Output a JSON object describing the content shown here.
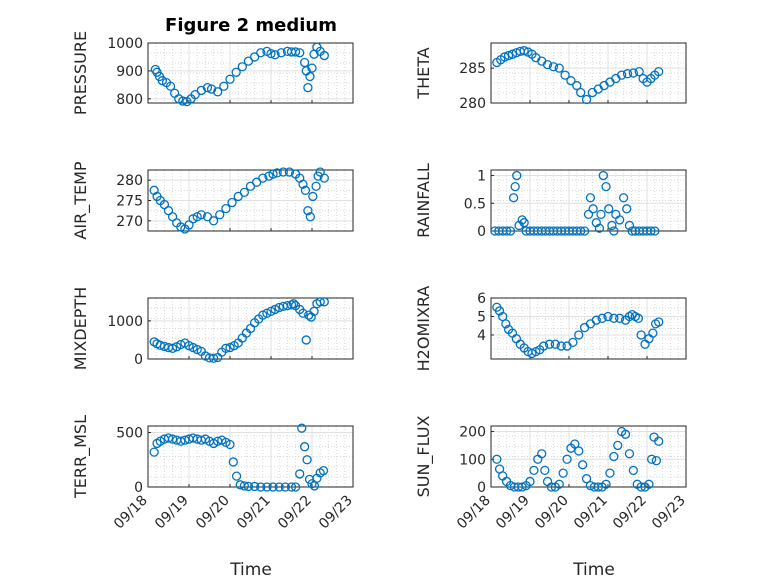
{
  "chart_data": {
    "type": "scatter",
    "title": "Figure 2 medium",
    "xlabel": "Time",
    "x_ticks": [
      "09/18",
      "09/19",
      "09/20",
      "09/21",
      "09/22",
      "09/23"
    ],
    "xlim": [
      0,
      5
    ],
    "marker": "o",
    "marker_color": "#0072BD",
    "subplots": [
      {
        "name": "PRESSURE",
        "ylabel": "PRESSURE",
        "ylim": [
          785,
          1000
        ],
        "yticks": [
          "800",
          "900",
          "1000"
        ],
        "ytick_values": [
          800,
          900,
          1000
        ],
        "x": [
          0.18,
          0.22,
          0.28,
          0.35,
          0.45,
          0.55,
          0.65,
          0.75,
          0.85,
          0.95,
          1.05,
          1.15,
          1.3,
          1.45,
          1.55,
          1.7,
          1.85,
          2.0,
          2.15,
          2.3,
          2.45,
          2.6,
          2.75,
          2.9,
          3.0,
          3.1,
          3.25,
          3.4,
          3.5,
          3.6,
          3.7,
          3.82,
          3.86,
          3.9,
          3.95,
          4.0,
          4.05,
          4.12,
          4.2,
          4.3
        ],
        "y": [
          905,
          895,
          880,
          865,
          858,
          845,
          820,
          800,
          792,
          790,
          800,
          815,
          830,
          840,
          835,
          825,
          845,
          870,
          895,
          915,
          935,
          950,
          965,
          970,
          962,
          958,
          965,
          970,
          968,
          968,
          965,
          930,
          900,
          840,
          880,
          910,
          960,
          985,
          970,
          955
        ]
      },
      {
        "name": "THETA",
        "ylabel": "THETA",
        "ylim": [
          280,
          288.6
        ],
        "yticks": [
          "280",
          "285"
        ],
        "ytick_values": [
          280,
          285
        ],
        "x": [
          0.15,
          0.25,
          0.35,
          0.45,
          0.55,
          0.65,
          0.75,
          0.85,
          0.95,
          1.05,
          1.15,
          1.3,
          1.45,
          1.6,
          1.75,
          1.9,
          2.05,
          2.2,
          2.3,
          2.45,
          2.6,
          2.75,
          2.9,
          3.05,
          3.2,
          3.35,
          3.5,
          3.65,
          3.8,
          3.9,
          4.0,
          4.1,
          4.2,
          4.3
        ],
        "y": [
          285.8,
          286.2,
          286.6,
          286.8,
          287.0,
          287.2,
          287.4,
          287.5,
          287.3,
          287.0,
          286.5,
          286.0,
          285.5,
          285.2,
          285.0,
          284.0,
          283.2,
          282.5,
          281.5,
          280.5,
          281.5,
          282.0,
          282.5,
          283.0,
          283.5,
          284.0,
          284.2,
          284.3,
          284.5,
          283.5,
          283.0,
          283.5,
          284.0,
          284.5
        ]
      },
      {
        "name": "AIR_TEMP",
        "ylabel": "AIR_TEMP",
        "ylim": [
          267.5,
          282.5
        ],
        "yticks": [
          "270",
          "275",
          "280"
        ],
        "ytick_values": [
          270,
          275,
          280
        ],
        "x": [
          0.15,
          0.22,
          0.3,
          0.4,
          0.5,
          0.6,
          0.7,
          0.8,
          0.9,
          1.0,
          1.1,
          1.2,
          1.3,
          1.45,
          1.6,
          1.75,
          1.9,
          2.05,
          2.2,
          2.35,
          2.5,
          2.65,
          2.8,
          2.95,
          3.05,
          3.15,
          3.3,
          3.45,
          3.6,
          3.7,
          3.78,
          3.84,
          3.9,
          3.96,
          4.02,
          4.1,
          4.15,
          4.2,
          4.3
        ],
        "y": [
          277.5,
          276.0,
          275.0,
          274.0,
          272.5,
          271.0,
          269.5,
          268.5,
          268.0,
          269.0,
          270.5,
          271.0,
          271.5,
          271.0,
          270.0,
          271.5,
          273.0,
          274.5,
          276.0,
          277.0,
          278.5,
          279.5,
          280.5,
          281.0,
          281.5,
          281.8,
          282.0,
          282.0,
          281.5,
          280.5,
          279.0,
          277.5,
          272.5,
          271.0,
          276.0,
          278.5,
          281.0,
          282.0,
          280.5
        ]
      },
      {
        "name": "RAINFALL",
        "ylabel": "RAINFALL",
        "ylim": [
          0,
          1.1
        ],
        "yticks": [
          "0",
          "0.5",
          "1"
        ],
        "ytick_values": [
          0,
          0.5,
          1
        ],
        "x": [
          0.1,
          0.2,
          0.3,
          0.4,
          0.5,
          0.58,
          0.62,
          0.66,
          0.72,
          0.8,
          0.85,
          0.9,
          1.0,
          1.1,
          1.2,
          1.3,
          1.4,
          1.5,
          1.6,
          1.7,
          1.8,
          1.9,
          2.0,
          2.1,
          2.2,
          2.3,
          2.4,
          2.5,
          2.55,
          2.62,
          2.7,
          2.78,
          2.82,
          2.88,
          2.95,
          3.02,
          3.1,
          3.15,
          3.2,
          3.3,
          3.4,
          3.48,
          3.55,
          3.62,
          3.7,
          3.8,
          3.9,
          4.0,
          4.1,
          4.2
        ],
        "y": [
          0,
          0,
          0,
          0,
          0,
          0.6,
          0.8,
          1.0,
          0.1,
          0.2,
          0.15,
          0,
          0,
          0,
          0,
          0,
          0,
          0,
          0,
          0,
          0,
          0,
          0,
          0,
          0,
          0,
          0,
          0.3,
          0.6,
          0.4,
          0.15,
          0.05,
          0.3,
          1.0,
          0.8,
          0.4,
          0.1,
          0,
          0.3,
          0.2,
          0.6,
          0.4,
          0.1,
          0,
          0,
          0,
          0,
          0,
          0,
          0
        ]
      },
      {
        "name": "MIXDEPTH",
        "ylabel": "MIXDEPTH",
        "ylim": [
          0,
          1600
        ],
        "yticks": [
          "0",
          "1000"
        ],
        "ytick_values": [
          0,
          1000
        ],
        "x": [
          0.15,
          0.22,
          0.3,
          0.4,
          0.5,
          0.6,
          0.7,
          0.8,
          0.9,
          1.0,
          1.1,
          1.2,
          1.3,
          1.4,
          1.5,
          1.6,
          1.7,
          1.8,
          1.9,
          2.0,
          2.1,
          2.2,
          2.3,
          2.4,
          2.5,
          2.6,
          2.7,
          2.8,
          2.9,
          3.0,
          3.1,
          3.2,
          3.3,
          3.4,
          3.5,
          3.55,
          3.6,
          3.7,
          3.78,
          3.86,
          3.92,
          3.98,
          4.05,
          4.12,
          4.2,
          4.3
        ],
        "y": [
          450,
          400,
          360,
          330,
          300,
          280,
          320,
          380,
          420,
          350,
          300,
          250,
          200,
          80,
          30,
          20,
          40,
          180,
          280,
          300,
          350,
          420,
          550,
          680,
          800,
          950,
          1050,
          1150,
          1200,
          1250,
          1300,
          1350,
          1380,
          1400,
          1420,
          1450,
          1400,
          1300,
          1200,
          500,
          1150,
          1100,
          1250,
          1450,
          1500,
          1500
        ]
      },
      {
        "name": "H2OMIXRA",
        "ylabel": "H2OMIXRA",
        "ylim": [
          2.7,
          6
        ],
        "yticks": [
          "4",
          "5",
          "6"
        ],
        "ytick_values": [
          4,
          5,
          6
        ],
        "x": [
          0.15,
          0.22,
          0.3,
          0.38,
          0.45,
          0.55,
          0.65,
          0.75,
          0.85,
          0.95,
          1.05,
          1.15,
          1.25,
          1.35,
          1.5,
          1.65,
          1.8,
          1.95,
          2.1,
          2.25,
          2.4,
          2.55,
          2.7,
          2.85,
          3.0,
          3.15,
          3.3,
          3.45,
          3.55,
          3.62,
          3.7,
          3.78,
          3.85,
          3.95,
          4.05,
          4.15,
          4.22,
          4.3
        ],
        "y": [
          5.5,
          5.3,
          5.0,
          4.6,
          4.3,
          4.1,
          3.8,
          3.5,
          3.3,
          3.1,
          3.0,
          3.1,
          3.2,
          3.4,
          3.5,
          3.5,
          3.4,
          3.4,
          3.6,
          4.0,
          4.4,
          4.6,
          4.8,
          4.9,
          5.0,
          4.9,
          4.9,
          4.8,
          5.0,
          5.1,
          5.0,
          4.9,
          4.0,
          3.5,
          3.8,
          4.1,
          4.6,
          4.7
        ]
      },
      {
        "name": "TERR_MSL",
        "ylabel": "TERR_MSL",
        "ylim": [
          0,
          560
        ],
        "yticks": [
          "0",
          "500"
        ],
        "ytick_values": [
          0,
          500
        ],
        "x": [
          0.15,
          0.22,
          0.3,
          0.4,
          0.5,
          0.6,
          0.7,
          0.8,
          0.9,
          1.0,
          1.1,
          1.2,
          1.3,
          1.4,
          1.5,
          1.6,
          1.7,
          1.8,
          1.9,
          2.0,
          2.08,
          2.16,
          2.25,
          2.35,
          2.45,
          2.6,
          2.75,
          2.9,
          3.05,
          3.2,
          3.35,
          3.5,
          3.6,
          3.7,
          3.75,
          3.82,
          3.88,
          3.94,
          4.0,
          4.06,
          4.12,
          4.2,
          4.28
        ],
        "y": [
          320,
          400,
          420,
          440,
          450,
          440,
          430,
          420,
          430,
          440,
          450,
          440,
          430,
          440,
          420,
          400,
          420,
          430,
          410,
          390,
          230,
          100,
          20,
          10,
          5,
          5,
          0,
          0,
          0,
          0,
          0,
          0,
          0,
          120,
          540,
          370,
          250,
          70,
          30,
          10,
          80,
          130,
          150
        ]
      },
      {
        "name": "SUN_FLUX",
        "ylabel": "SUN_FLUX",
        "ylim": [
          0,
          220
        ],
        "yticks": [
          "0",
          "100",
          "200"
        ],
        "ytick_values": [
          0,
          100,
          200
        ],
        "x": [
          0.15,
          0.22,
          0.3,
          0.4,
          0.5,
          0.6,
          0.7,
          0.8,
          0.9,
          1.0,
          1.1,
          1.2,
          1.3,
          1.38,
          1.45,
          1.55,
          1.65,
          1.75,
          1.85,
          1.95,
          2.05,
          2.15,
          2.25,
          2.35,
          2.45,
          2.55,
          2.65,
          2.75,
          2.85,
          2.95,
          3.05,
          3.15,
          3.25,
          3.35,
          3.45,
          3.55,
          3.65,
          3.75,
          3.85,
          3.95,
          4.05,
          4.12,
          4.18,
          4.24,
          4.3
        ],
        "y": [
          100,
          65,
          40,
          20,
          5,
          0,
          0,
          0,
          5,
          20,
          60,
          100,
          120,
          60,
          20,
          0,
          0,
          10,
          50,
          100,
          140,
          155,
          130,
          80,
          30,
          5,
          0,
          0,
          0,
          10,
          50,
          110,
          150,
          200,
          190,
          120,
          60,
          10,
          0,
          0,
          10,
          100,
          180,
          95,
          165
        ]
      }
    ]
  }
}
